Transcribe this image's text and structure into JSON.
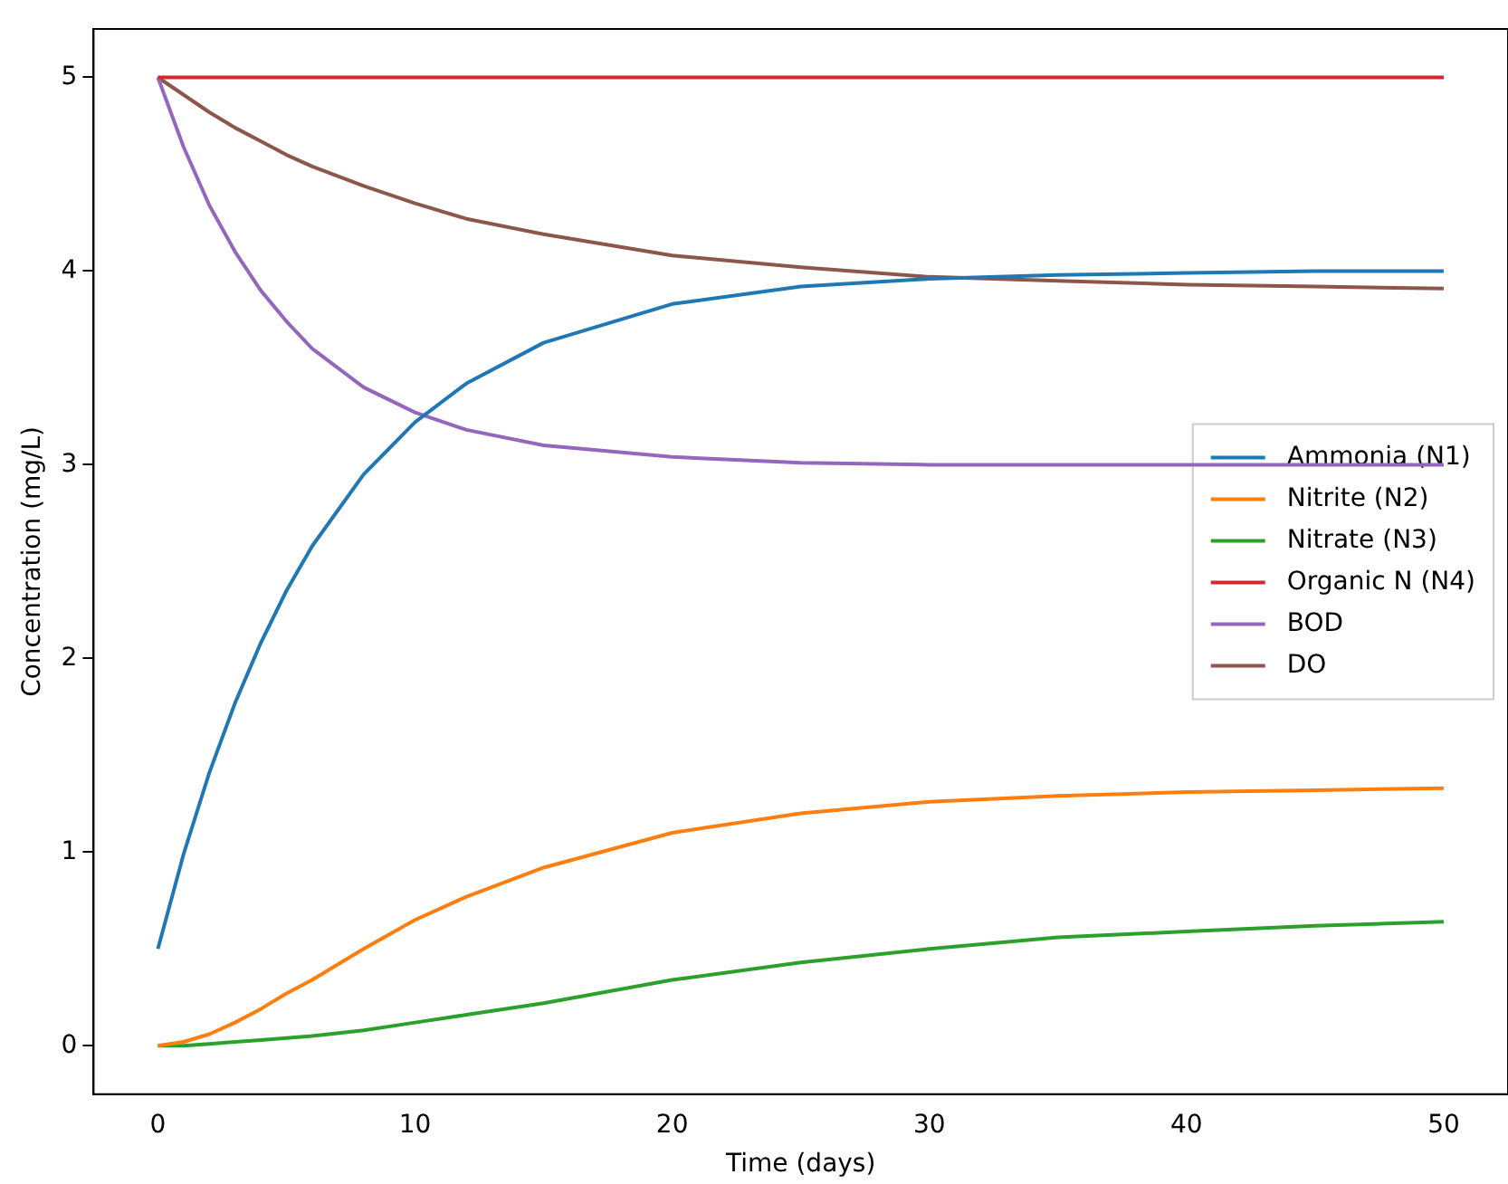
{
  "chart_data": {
    "type": "line",
    "xlabel": "Time (days)",
    "ylabel": "Concentration (mg/L)",
    "xlim": [
      -2.5,
      52.5
    ],
    "xticks": [
      0,
      10,
      20,
      30,
      40,
      50
    ],
    "ylim": [
      -0.25,
      5.25
    ],
    "yticks": [
      0,
      1,
      2,
      3,
      4,
      5
    ],
    "grid": false,
    "legend": "right",
    "marker": "none",
    "line_style": "solid",
    "x": [
      0,
      1,
      2,
      3,
      4,
      5,
      6,
      8,
      10,
      12,
      15,
      20,
      25,
      30,
      35,
      40,
      45,
      50
    ],
    "series": [
      {
        "name": "Ammonia (N1)",
        "color": "#1f77b4",
        "values": [
          0.5,
          0.99,
          1.41,
          1.77,
          2.08,
          2.35,
          2.58,
          2.95,
          3.22,
          3.42,
          3.63,
          3.83,
          3.92,
          3.96,
          3.98,
          3.99,
          4.0,
          4.0
        ]
      },
      {
        "name": "Nitrite (N2)",
        "color": "#ff7f0e",
        "values": [
          0,
          0.02,
          0.06,
          0.12,
          0.19,
          0.27,
          0.34,
          0.5,
          0.65,
          0.77,
          0.92,
          1.1,
          1.2,
          1.26,
          1.29,
          1.31,
          1.32,
          1.33
        ]
      },
      {
        "name": "Nitrate (N3)",
        "color": "#2ca02c",
        "values": [
          0,
          0,
          0.01,
          0.02,
          0.03,
          0.04,
          0.05,
          0.08,
          0.12,
          0.16,
          0.22,
          0.34,
          0.43,
          0.5,
          0.56,
          0.59,
          0.62,
          0.64
        ]
      },
      {
        "name": "Organic N (N4)",
        "color": "#d62728",
        "values": [
          5,
          5,
          5,
          5,
          5,
          5,
          5,
          5,
          5,
          5,
          5,
          5,
          5,
          5,
          5,
          5,
          5,
          5
        ]
      },
      {
        "name": "BOD",
        "color": "#9467bd",
        "values": [
          5,
          4.64,
          4.34,
          4.1,
          3.9,
          3.74,
          3.6,
          3.4,
          3.27,
          3.18,
          3.1,
          3.04,
          3.01,
          3.0,
          3.0,
          3.0,
          3.0,
          3.0
        ]
      },
      {
        "name": "DO",
        "color": "#8c564b",
        "values": [
          5,
          4.91,
          4.82,
          4.74,
          4.67,
          4.6,
          4.54,
          4.44,
          4.35,
          4.27,
          4.19,
          4.08,
          4.02,
          3.97,
          3.95,
          3.93,
          3.92,
          3.91
        ]
      }
    ]
  }
}
